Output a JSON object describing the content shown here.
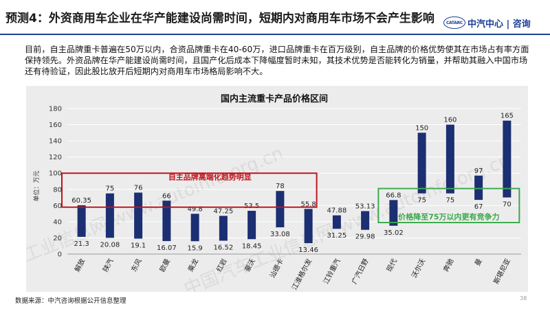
{
  "header": {
    "title": "预测4：外资商用车企业在华产能建设尚需时间，短期内对商用车市场不会产生影响",
    "logo_badge": "CATARC",
    "brand": "中汽中心 | 咨询"
  },
  "body_text": "目前，自主品牌重卡普遍在50万以内，合资品牌重卡在40-60万，进口品牌重卡在百万级别，自主品牌的价格优势使其在市场占有率方面保持领先。外资品牌在华产能建设尚需时间，且国产化后成本下降幅度暂时未知，其技术优势是否能转化为销量，并帮助其融入中国市场还有待验证，因此股比放开后短期内对商用车市场格局影响不大。",
  "watermark": "中国汽车工业信息网 www.autoinfo.org.cn",
  "annotations": {
    "left_box_label": "自主品牌高端化趋势明显",
    "right_box_label": "价格降至75万以内更有竞争力"
  },
  "footer": {
    "source": "数据来源：中汽咨询根据公开信息整理",
    "page": "38"
  },
  "colors": {
    "bar": "#1b2f72",
    "red_box": "#c0141c",
    "green_box": "#3aa84a",
    "panel_bg": "#ececec",
    "grid": "#ffffff"
  },
  "chart_data": {
    "type": "bar",
    "subtype": "floating-range",
    "title": "国内主流重卡产品价格区间",
    "ylabel": "单位：万元",
    "ylim": [
      0,
      180
    ],
    "yticks": [
      0,
      20,
      40,
      60,
      80,
      100,
      120,
      140,
      160,
      180
    ],
    "grid": true,
    "categories": [
      "解放",
      "陕汽",
      "东风",
      "欧曼",
      "乘龙",
      "红岩",
      "豪沃",
      "汕德卡",
      "江淮格尔发",
      "江铃重汽",
      "广汽日野",
      "现代",
      "沃尔沃",
      "奔驰",
      "曼",
      "斯堪尼亚"
    ],
    "low": [
      21.3,
      20.08,
      19.1,
      16.07,
      15.9,
      16.52,
      18.45,
      33.08,
      13.46,
      31.25,
      29.98,
      35.02,
      75,
      75,
      67,
      70
    ],
    "high": [
      60.35,
      75,
      76,
      66,
      49.8,
      47.25,
      53.5,
      78,
      55.8,
      47.88,
      53.13,
      66.8,
      150,
      160,
      97,
      165
    ],
    "low_labels": [
      "21.3",
      "20.08",
      "19.1",
      "16.07",
      "15.9",
      "16.52",
      "18.45",
      "33.08",
      "13.46",
      "31.25",
      "29.98",
      "35.02",
      "75",
      "75",
      "67",
      "70"
    ],
    "high_labels": [
      "60.35",
      "75",
      "76",
      "66",
      "49.8",
      "47.25",
      "53.5",
      "78",
      "55.8",
      "47.88",
      "53.13",
      "66.8",
      "150",
      "160",
      "97",
      "165"
    ]
  }
}
